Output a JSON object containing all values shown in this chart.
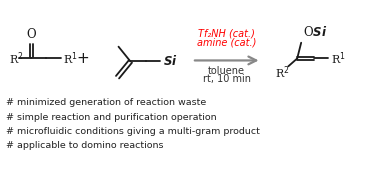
{
  "background_color": "#ffffff",
  "fig_width": 3.78,
  "fig_height": 1.76,
  "dpi": 100,
  "catalyst_text_line1": "Tf₂NH (cat.)",
  "catalyst_text_line2": "amine (cat.)",
  "catalyst_color": "#ff0000",
  "conditions_line1": "toluene",
  "conditions_line2": "rt, 10 min",
  "conditions_color": "#333333",
  "bullet_lines": [
    "# minimized generation of reaction waste",
    "# simple reaction and purification operation",
    "# microfluidic conditions giving a multi-gram product",
    "# applicable to domino reactions"
  ],
  "bullet_color": "#222222",
  "structure_color": "#1a1a1a",
  "arrow_color": "#888888",
  "lw": 1.3
}
